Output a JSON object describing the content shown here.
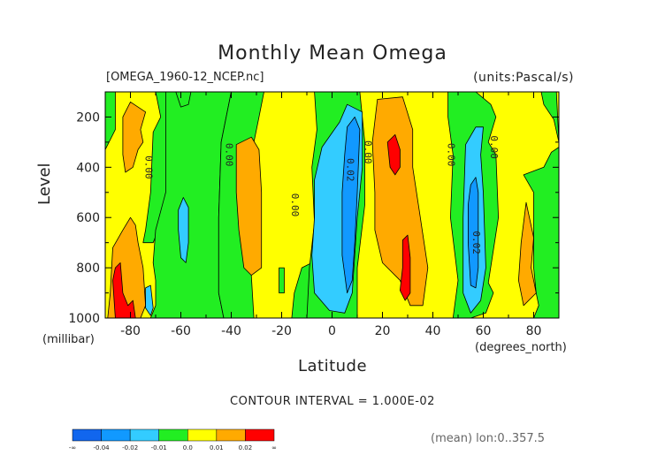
{
  "title": "Monthly Mean Omega",
  "file_label": "[OMEGA_1960-12_NCEP.nc]",
  "units_label": "(units:Pascal/s)",
  "contour_interval": "CONTOUR INTERVAL = 1.000E-02",
  "mean_label": "(mean) lon:0..357.5",
  "colorbar": {
    "colors": [
      "#1166ee",
      "#1199ff",
      "#33ccff",
      "#22ee22",
      "#ffff00",
      "#ffaa00",
      "#ff0000"
    ],
    "tick_labels": [
      "-∞",
      "-0.04",
      "-0.02",
      "-0.01",
      "0.0",
      "0.01",
      "0.02",
      "∞"
    ]
  },
  "chart_data": {
    "type": "heatmap",
    "title": "Monthly Mean Omega",
    "xlabel": "Latitude",
    "xlabel_unit": "(degrees_north)",
    "ylabel": "Level",
    "ylabel_unit": "(millibar)",
    "xlim": [
      -90,
      90
    ],
    "ylim": [
      1000,
      100
    ],
    "x_ticks": [
      -80,
      -60,
      -40,
      -20,
      0,
      20,
      40,
      60,
      80
    ],
    "x_tick_labels": [
      "-80",
      "-60",
      "-40",
      "-20",
      "0",
      "20",
      "40",
      "60",
      "80"
    ],
    "y_ticks": [
      200,
      400,
      600,
      800,
      1000
    ],
    "y_tick_labels": [
      "200",
      "400",
      "600",
      "800",
      "1000"
    ],
    "contour_labels": [
      {
        "text": "0.00",
        "lat": -73,
        "lev": 400
      },
      {
        "text": "0.00",
        "lat": -41,
        "lev": 350
      },
      {
        "text": "0.00",
        "lat": -15,
        "lev": 550
      },
      {
        "text": "0.02",
        "lat": 7,
        "lev": 410
      },
      {
        "text": "0.00",
        "lat": 14,
        "lev": 340
      },
      {
        "text": "0.00",
        "lat": 47,
        "lev": 350
      },
      {
        "text": "0.00",
        "lat": 64,
        "lev": 320
      },
      {
        "text": "0.02",
        "lat": 57,
        "lev": 700
      }
    ],
    "regions": [
      {
        "value": "0.0..0.01",
        "points": [
          [
            -90,
            100
          ],
          [
            90,
            100
          ],
          [
            90,
            1000
          ],
          [
            -90,
            1000
          ]
        ]
      },
      {
        "value": "-0.01..0.0",
        "points": [
          [
            -90,
            100
          ],
          [
            -86,
            100
          ],
          [
            -86,
            250
          ],
          [
            -90,
            330
          ]
        ]
      },
      {
        "value": "-0.01..0.0",
        "points": [
          [
            -77,
            100
          ],
          [
            -70,
            100
          ],
          [
            -68,
            200
          ],
          [
            -71,
            260
          ],
          [
            -72,
            500
          ],
          [
            -74,
            650
          ],
          [
            -75,
            700
          ],
          [
            -71,
            700
          ],
          [
            -69,
            650
          ],
          [
            -66,
            500
          ],
          [
            -66,
            200
          ],
          [
            -62,
            130
          ],
          [
            -62,
            100
          ]
        ]
      },
      {
        "value": "-0.01..0.0",
        "points": [
          [
            -66,
            100
          ],
          [
            -40,
            100
          ],
          [
            -42,
            200
          ],
          [
            -44,
            300
          ],
          [
            -45,
            600
          ],
          [
            -45,
            900
          ],
          [
            -43,
            1000
          ],
          [
            -72,
            1000
          ],
          [
            -70,
            950
          ],
          [
            -70,
            850
          ],
          [
            -71,
            780
          ],
          [
            -70,
            650
          ],
          [
            -66,
            500
          ],
          [
            -66,
            200
          ]
        ]
      },
      {
        "value": "-0.01..0.0",
        "points": [
          [
            -62,
            100
          ],
          [
            -56,
            100
          ],
          [
            -57,
            150
          ],
          [
            -60,
            160
          ]
        ]
      },
      {
        "value": "-0.01..0.0",
        "points": [
          [
            -37,
            100
          ],
          [
            -33,
            100
          ],
          [
            -35,
            120
          ]
        ]
      },
      {
        "value": "-0.01..0.0",
        "points": [
          [
            -40,
            100
          ],
          [
            -27,
            100
          ],
          [
            -29,
            200
          ],
          [
            -31,
            300
          ],
          [
            -34,
            350
          ],
          [
            -34,
            500
          ],
          [
            -31,
            1000
          ],
          [
            -43,
            1000
          ],
          [
            -45,
            900
          ],
          [
            -45,
            600
          ],
          [
            -44,
            300
          ],
          [
            -42,
            200
          ]
        ]
      },
      {
        "value": "-0.01..0.0",
        "points": [
          [
            -21,
            800
          ],
          [
            -19,
            800
          ],
          [
            -19,
            900
          ],
          [
            -21,
            900
          ]
        ]
      },
      {
        "value": "-0.01..0.0",
        "points": [
          [
            -12,
            800
          ],
          [
            -8,
            780
          ],
          [
            -10,
            1000
          ],
          [
            -16,
            1000
          ],
          [
            -15,
            900
          ]
        ]
      },
      {
        "value": "-0.01..0.0",
        "points": [
          [
            -7,
            100
          ],
          [
            11,
            100
          ],
          [
            13,
            300
          ],
          [
            13,
            550
          ],
          [
            10,
            800
          ],
          [
            10,
            1000
          ],
          [
            -10,
            1000
          ],
          [
            -9,
            800
          ],
          [
            -7,
            620
          ],
          [
            -8,
            400
          ],
          [
            -6,
            250
          ]
        ]
      },
      {
        "value": "-0.01..0.0",
        "points": [
          [
            46,
            100
          ],
          [
            57,
            100
          ],
          [
            63,
            150
          ],
          [
            65,
            200
          ],
          [
            62,
            300
          ],
          [
            65,
            350
          ],
          [
            66,
            600
          ],
          [
            62,
            860
          ],
          [
            64,
            900
          ],
          [
            61,
            980
          ],
          [
            55,
            1000
          ],
          [
            48,
            1000
          ],
          [
            50,
            850
          ],
          [
            47,
            600
          ],
          [
            48,
            350
          ],
          [
            46,
            200
          ]
        ]
      },
      {
        "value": "-0.01..0.0",
        "points": [
          [
            83,
            100
          ],
          [
            89,
            100
          ],
          [
            90,
            300
          ],
          [
            88,
            210
          ],
          [
            84,
            150
          ]
        ]
      },
      {
        "value": "-0.01..0.0",
        "points": [
          [
            76,
            430
          ],
          [
            80,
            500
          ],
          [
            80,
            800
          ],
          [
            81,
            900
          ],
          [
            82,
            950
          ],
          [
            80,
            1000
          ],
          [
            90,
            1000
          ],
          [
            90,
            320
          ],
          [
            87,
            340
          ],
          [
            84,
            400
          ]
        ]
      },
      {
        "value": "0.01..0.02",
        "points": [
          [
            -83,
            200
          ],
          [
            -80,
            140
          ],
          [
            -74,
            180
          ],
          [
            -76,
            250
          ],
          [
            -75,
            300
          ],
          [
            -77,
            330
          ],
          [
            -79,
            400
          ],
          [
            -82,
            420
          ],
          [
            -83,
            350
          ]
        ]
      },
      {
        "value": "0.01..0.02",
        "points": [
          [
            -87,
            720
          ],
          [
            -83,
            650
          ],
          [
            -80,
            600
          ],
          [
            -78,
            630
          ],
          [
            -77,
            700
          ],
          [
            -75,
            800
          ],
          [
            -74,
            950
          ],
          [
            -76,
            1000
          ],
          [
            -89,
            1000
          ],
          [
            -88,
            900
          ]
        ]
      },
      {
        "value": "0.01..0.02",
        "points": [
          [
            -38,
            310
          ],
          [
            -32,
            280
          ],
          [
            -29,
            330
          ],
          [
            -28,
            500
          ],
          [
            -28,
            800
          ],
          [
            -32,
            830
          ],
          [
            -35,
            800
          ],
          [
            -37,
            650
          ],
          [
            -38,
            500
          ]
        ]
      },
      {
        "value": "0.01..0.02",
        "points": [
          [
            18,
            130
          ],
          [
            28,
            120
          ],
          [
            32,
            250
          ],
          [
            32,
            400
          ],
          [
            35,
            600
          ],
          [
            38,
            800
          ],
          [
            36,
            950
          ],
          [
            31,
            950
          ],
          [
            27,
            850
          ],
          [
            20,
            780
          ],
          [
            17,
            650
          ],
          [
            17,
            500
          ],
          [
            16,
            300
          ]
        ]
      },
      {
        "value": "0.01..0.02",
        "points": [
          [
            77,
            540
          ],
          [
            80,
            680
          ],
          [
            79,
            800
          ],
          [
            81,
            900
          ],
          [
            76,
            950
          ],
          [
            74,
            850
          ],
          [
            75,
            700
          ]
        ]
      },
      {
        "value": "0.02..inf",
        "points": [
          [
            -86,
            800
          ],
          [
            -84,
            780
          ],
          [
            -83,
            900
          ],
          [
            -81,
            950
          ],
          [
            -79,
            930
          ],
          [
            -78,
            1000
          ],
          [
            -86,
            1000
          ],
          [
            -87,
            850
          ]
        ]
      },
      {
        "value": "0.02..inf",
        "points": [
          [
            22,
            300
          ],
          [
            25,
            270
          ],
          [
            27,
            330
          ],
          [
            27,
            400
          ],
          [
            25,
            430
          ],
          [
            23,
            400
          ]
        ]
      },
      {
        "value": "0.02..inf",
        "points": [
          [
            28,
            690
          ],
          [
            30,
            670
          ],
          [
            31,
            760
          ],
          [
            31,
            900
          ],
          [
            29,
            930
          ],
          [
            27,
            890
          ],
          [
            28,
            800
          ]
        ]
      },
      {
        "value": "-0.02..-0.01",
        "points": [
          [
            -61,
            570
          ],
          [
            -59,
            520
          ],
          [
            -57,
            560
          ],
          [
            -57,
            700
          ],
          [
            -58,
            780
          ],
          [
            -60,
            760
          ],
          [
            -61,
            650
          ]
        ]
      },
      {
        "value": "-0.02..-0.01",
        "points": [
          [
            -74,
            880
          ],
          [
            -72,
            870
          ],
          [
            -71,
            960
          ],
          [
            -72,
            990
          ],
          [
            -74,
            960
          ]
        ]
      },
      {
        "value": "-0.02..-0.01",
        "points": [
          [
            3,
            220
          ],
          [
            6,
            150
          ],
          [
            12,
            180
          ],
          [
            12,
            400
          ],
          [
            10,
            600
          ],
          [
            8,
            900
          ],
          [
            5,
            980
          ],
          [
            -1,
            970
          ],
          [
            -7,
            900
          ],
          [
            -8,
            750
          ],
          [
            -7,
            600
          ],
          [
            -7,
            450
          ],
          [
            -4,
            320
          ]
        ]
      },
      {
        "value": "-0.02..-0.01",
        "points": [
          [
            53,
            310
          ],
          [
            57,
            240
          ],
          [
            60,
            240
          ],
          [
            59,
            350
          ],
          [
            60,
            500
          ],
          [
            61,
            800
          ],
          [
            59,
            930
          ],
          [
            55,
            980
          ],
          [
            52,
            900
          ],
          [
            52,
            600
          ]
        ]
      },
      {
        "value": "-0.04..-0.02",
        "points": [
          [
            6,
            240
          ],
          [
            9,
            200
          ],
          [
            11,
            250
          ],
          [
            10,
            500
          ],
          [
            9,
            700
          ],
          [
            8,
            850
          ],
          [
            6,
            900
          ],
          [
            4,
            750
          ],
          [
            4,
            500
          ],
          [
            5,
            350
          ]
        ]
      },
      {
        "value": "-0.04..-0.02",
        "points": [
          [
            55,
            470
          ],
          [
            57,
            440
          ],
          [
            58,
            500
          ],
          [
            58,
            800
          ],
          [
            57,
            880
          ],
          [
            55,
            870
          ],
          [
            54,
            700
          ],
          [
            54,
            550
          ]
        ]
      }
    ]
  }
}
